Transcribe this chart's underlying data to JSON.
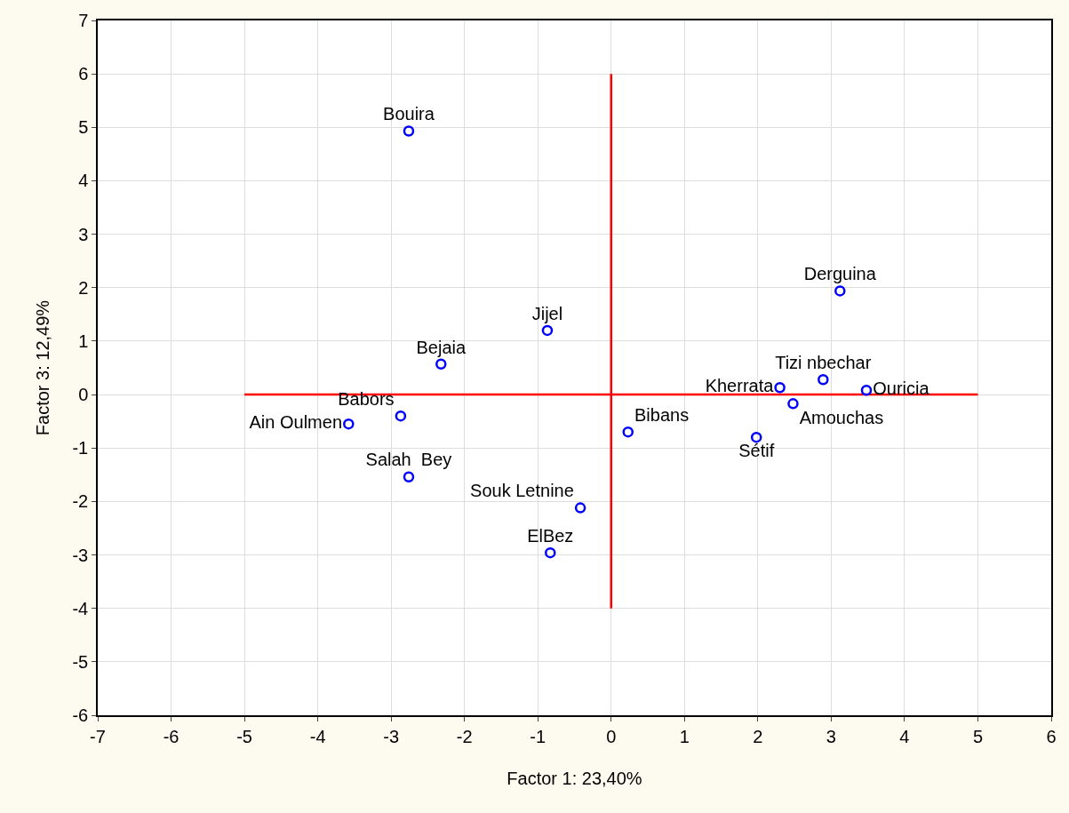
{
  "chart_data": {
    "type": "scatter",
    "xlabel": "Factor 1: 23,40%",
    "ylabel": "Factor 3: 12,49%",
    "xlim": [
      -7,
      6
    ],
    "ylim": [
      -6,
      7
    ],
    "xticks": [
      -7,
      -6,
      -5,
      -4,
      -3,
      -2,
      -1,
      0,
      1,
      2,
      3,
      4,
      5,
      6
    ],
    "yticks": [
      -6,
      -5,
      -4,
      -3,
      -2,
      -1,
      0,
      1,
      2,
      3,
      4,
      5,
      6,
      7
    ],
    "grid": true,
    "marker": "circle",
    "series": [
      {
        "name": "Bouira",
        "color": "#0000ff",
        "x": [
          -2.76
        ],
        "values": [
          4.93
        ]
      },
      {
        "name": "Derguina",
        "color": "#0000ff",
        "x": [
          3.12
        ],
        "values": [
          1.94
        ]
      },
      {
        "name": "Jijel",
        "color": "#0000ff",
        "x": [
          -0.87
        ],
        "values": [
          1.2
        ]
      },
      {
        "name": "Bejaia",
        "color": "#0000ff",
        "x": [
          -2.32
        ],
        "values": [
          0.57
        ]
      },
      {
        "name": "Babors",
        "color": "#0000ff",
        "x": [
          -2.87
        ],
        "values": [
          -0.4
        ]
      },
      {
        "name": "Ain Oulmen",
        "color": "#0000ff",
        "x": [
          -3.58
        ],
        "values": [
          -0.55
        ]
      },
      {
        "name": "Salah  Bey",
        "color": "#0000ff",
        "x": [
          -2.76
        ],
        "values": [
          -1.54
        ]
      },
      {
        "name": "Souk Letnine",
        "color": "#0000ff",
        "x": [
          -0.42
        ],
        "values": [
          -2.12
        ]
      },
      {
        "name": "ElBez",
        "color": "#0000ff",
        "x": [
          -0.83
        ],
        "values": [
          -2.96
        ]
      },
      {
        "name": "Bibans",
        "color": "#0000ff",
        "x": [
          0.23
        ],
        "values": [
          -0.7
        ]
      },
      {
        "name": "Sétif",
        "color": "#0000ff",
        "x": [
          1.98
        ],
        "values": [
          -0.8
        ]
      },
      {
        "name": "Kherrata",
        "color": "#0000ff",
        "x": [
          2.3
        ],
        "values": [
          0.13
        ]
      },
      {
        "name": "Amouchas",
        "color": "#0000ff",
        "x": [
          2.48
        ],
        "values": [
          -0.17
        ]
      },
      {
        "name": "Tizi nbechar",
        "color": "#0000ff",
        "x": [
          2.89
        ],
        "values": [
          0.28
        ]
      },
      {
        "name": "Ouricia",
        "color": "#0000ff",
        "x": [
          3.48
        ],
        "values": [
          0.08
        ]
      },
      {
        "type": "line",
        "color": "#ff0000",
        "x": [
          -5,
          5
        ],
        "values": [
          0,
          0
        ],
        "marker": "none"
      },
      {
        "type": "line",
        "color": "#ff0000",
        "x": [
          0,
          0
        ],
        "values": [
          -4,
          6
        ],
        "marker": "none"
      }
    ]
  }
}
